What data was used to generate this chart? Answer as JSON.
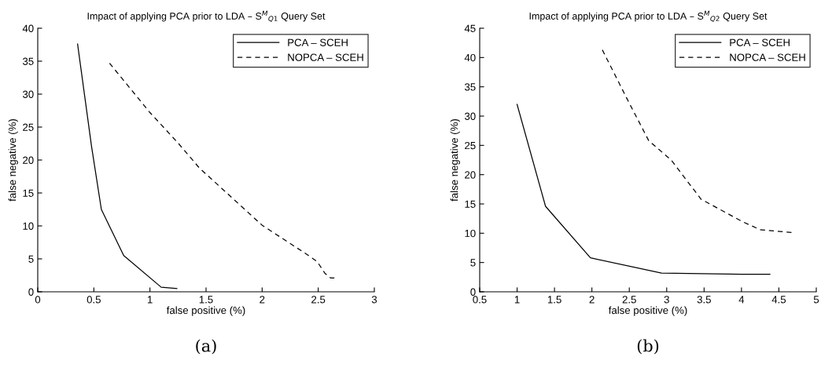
{
  "chart_data": [
    {
      "type": "line",
      "title": "Impact of applying PCA prior to LDA – S$^{M}$$_{Q1}$ Query Set",
      "xlabel": "false positive (%)",
      "ylabel": "false negative (%)",
      "xlim": [
        0,
        3
      ],
      "xticks": [
        0,
        0.5,
        1,
        1.5,
        2,
        2.5,
        3
      ],
      "ylim": [
        0,
        40
      ],
      "yticks": [
        0,
        5,
        10,
        15,
        20,
        25,
        30,
        35,
        40
      ],
      "grid": false,
      "legend": "top right",
      "annotations": [
        "(a)"
      ],
      "series": [
        {
          "name": "PCA – SCEH",
          "color": "#000000",
          "line_style": "solid",
          "x": [
            0.355,
            0.48,
            0.567,
            0.766,
            1.1,
            1.24
          ],
          "values": [
            37.6,
            22.0,
            12.5,
            5.5,
            0.7,
            0.5
          ]
        },
        {
          "name": "NOPCA – SCEH",
          "color": "#000000",
          "line_style": "dashed",
          "x": [
            0.64,
            1.0,
            1.25,
            1.44,
            2.0,
            2.37,
            2.49,
            2.56,
            2.61,
            2.66
          ],
          "values": [
            34.7,
            27.2,
            22.6,
            18.8,
            10.1,
            6.0,
            4.6,
            2.8,
            2.1,
            2.1
          ]
        }
      ]
    },
    {
      "type": "line",
      "title": "Impact of applying PCA prior to LDA – S$^{M}$$_{Q2}$ Query Set",
      "xlabel": "false positive (%)",
      "ylabel": "false negative (%)",
      "xlim": [
        0.5,
        5
      ],
      "xticks": [
        0.5,
        1,
        1.5,
        2,
        2.5,
        3,
        3.5,
        4,
        4.5,
        5
      ],
      "ylim": [
        0,
        45
      ],
      "yticks": [
        0,
        5,
        10,
        15,
        20,
        25,
        30,
        35,
        40,
        45
      ],
      "grid": false,
      "legend": "top right",
      "annotations": [
        "(b)"
      ],
      "series": [
        {
          "name": "PCA – SCEH",
          "color": "#000000",
          "line_style": "solid",
          "x": [
            1.0,
            1.38,
            1.98,
            2.93,
            4.0,
            4.38
          ],
          "values": [
            32.0,
            14.6,
            5.8,
            3.2,
            3.0,
            3.0
          ]
        },
        {
          "name": "NOPCA – SCEH",
          "color": "#000000",
          "line_style": "dashed",
          "x": [
            2.14,
            2.46,
            2.76,
            3.06,
            3.46,
            4.01,
            4.25,
            4.69
          ],
          "values": [
            41.3,
            33.2,
            25.8,
            22.5,
            15.8,
            12.0,
            10.6,
            10.1
          ]
        }
      ]
    }
  ]
}
